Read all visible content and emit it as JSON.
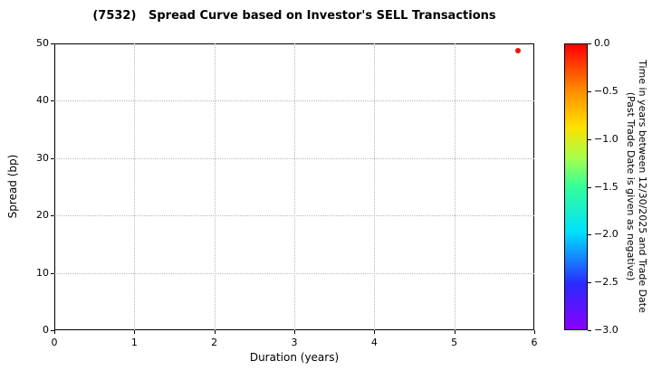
{
  "title": "(7532)   Spread Curve based on Investor's SELL Transactions",
  "chart_data": {
    "type": "scatter",
    "title": "(7532)   Spread Curve based on Investor's SELL Transactions",
    "xlabel": "Duration (years)",
    "ylabel": "Spread (bp)",
    "xlim": [
      0,
      6
    ],
    "ylim": [
      0,
      50
    ],
    "x_ticks": [
      0,
      1,
      2,
      3,
      4,
      5,
      6
    ],
    "y_ticks": [
      0,
      10,
      20,
      30,
      40,
      50
    ],
    "grid": true,
    "legend": "none",
    "points": [
      {
        "x": 5.8,
        "y": 48.8,
        "color": "#e31a0c",
        "colorbar_value": 0.0
      }
    ],
    "colorbar": {
      "label_line1": "Time in years between 12/30/2025 and Trade Date",
      "label_line2": "(Past Trade Date is given as negative)",
      "max": 0.0,
      "min": -3.0,
      "ticks": [
        0.0,
        -0.5,
        -1.0,
        -1.5,
        -2.0,
        -2.5,
        -3.0
      ],
      "tick_labels": [
        "0.0",
        "−0.5",
        "−1.0",
        "−1.5",
        "−2.0",
        "−2.5",
        "−3.0"
      ],
      "colormap": "rainbow reversed (red top to violet bottom)"
    }
  }
}
